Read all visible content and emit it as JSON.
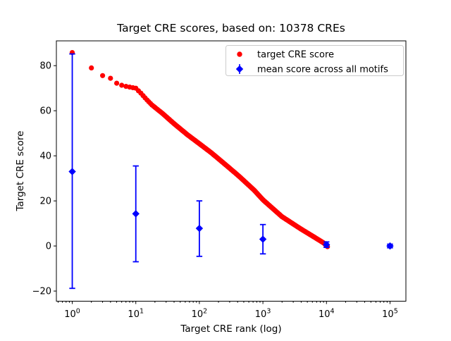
{
  "chart_data": {
    "type": "scatter",
    "title": "Target CRE scores, based on: 10378 CREs",
    "xlabel": "Target CRE rank (log)",
    "ylabel": "Target CRE score",
    "x_scale": "log",
    "xlim_log10": [
      -0.25,
      5.25
    ],
    "ylim": [
      -24.5,
      91
    ],
    "x_tick_exponents": [
      0,
      1,
      2,
      3,
      4,
      5
    ],
    "y_ticks": [
      -20,
      0,
      20,
      40,
      60,
      80
    ],
    "grid": false,
    "legend_position": "upper right",
    "colors": {
      "target": "#ff0000",
      "mean": "#0000ff",
      "legend_border": "#cccccc"
    },
    "series": [
      {
        "name": "target CRE score",
        "marker": "circle",
        "color": "#ff0000",
        "max_rank": 10378,
        "anchors_log10rank_score": [
          [
            0.0,
            85.8
          ],
          [
            0.301,
            79.0
          ],
          [
            0.477,
            75.6
          ],
          [
            0.602,
            74.4
          ],
          [
            0.699,
            72.2
          ],
          [
            0.778,
            71.3
          ],
          [
            0.845,
            70.8
          ],
          [
            0.903,
            70.5
          ],
          [
            0.954,
            70.2
          ],
          [
            1.0,
            70.0
          ],
          [
            1.079,
            67.8
          ],
          [
            1.176,
            64.8
          ],
          [
            1.26,
            62.4
          ],
          [
            1.42,
            58.8
          ],
          [
            1.6,
            54.3
          ],
          [
            1.81,
            49.4
          ],
          [
            1.98,
            45.8
          ],
          [
            2.19,
            41.3
          ],
          [
            2.41,
            36.1
          ],
          [
            2.63,
            30.8
          ],
          [
            2.86,
            24.8
          ],
          [
            3.0,
            20.5
          ],
          [
            3.3,
            13.0
          ],
          [
            3.6,
            7.5
          ],
          [
            3.85,
            3.2
          ],
          [
            3.963,
            1.2
          ],
          [
            4.016,
            -0.3
          ]
        ]
      },
      {
        "name": "mean score across all motifs",
        "marker": "diamond",
        "color": "#0000ff",
        "points": [
          {
            "rank": 1,
            "mean": 33.0,
            "lo": -18.8,
            "hi": 85.2
          },
          {
            "rank": 10,
            "mean": 14.3,
            "lo": -7.0,
            "hi": 35.5
          },
          {
            "rank": 100,
            "mean": 7.8,
            "lo": -4.6,
            "hi": 20.0
          },
          {
            "rank": 1000,
            "mean": 3.0,
            "lo": -3.5,
            "hi": 9.5
          },
          {
            "rank": 10000,
            "mean": 0.6,
            "lo": -0.6,
            "hi": 1.8
          },
          {
            "rank": 100000,
            "mean": 0.0,
            "lo": -0.8,
            "hi": 0.8
          }
        ]
      }
    ]
  }
}
